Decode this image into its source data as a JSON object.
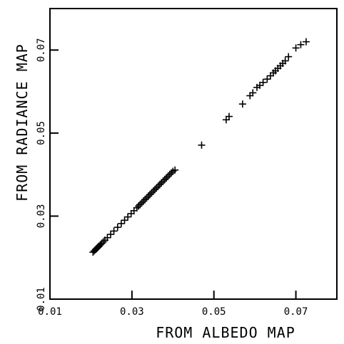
{
  "chart_data": {
    "type": "scatter",
    "xlabel": "FROM ALBEDO MAP",
    "ylabel": "FROM RADIANCE MAP",
    "xlim": [
      0.01,
      0.08
    ],
    "ylim": [
      0.01,
      0.08
    ],
    "xticks": [
      "0.01",
      "0.03",
      "0.05",
      "0.07"
    ],
    "yticks": [
      "0.01",
      "0.03",
      "0.05",
      "0.07"
    ],
    "grid": false,
    "marker": "+",
    "color": "#000000",
    "points": [
      [
        0.0205,
        0.0213
      ],
      [
        0.0208,
        0.0216
      ],
      [
        0.0211,
        0.0219
      ],
      [
        0.0214,
        0.0222
      ],
      [
        0.0217,
        0.0225
      ],
      [
        0.022,
        0.0228
      ],
      [
        0.0223,
        0.0231
      ],
      [
        0.0226,
        0.0234
      ],
      [
        0.023,
        0.0238
      ],
      [
        0.0234,
        0.0242
      ],
      [
        0.024,
        0.0248
      ],
      [
        0.0248,
        0.0256
      ],
      [
        0.0256,
        0.0264
      ],
      [
        0.0265,
        0.0273
      ],
      [
        0.0274,
        0.0282
      ],
      [
        0.0282,
        0.029
      ],
      [
        0.029,
        0.0298
      ],
      [
        0.0298,
        0.0306
      ],
      [
        0.0305,
        0.0313
      ],
      [
        0.0312,
        0.032
      ],
      [
        0.0316,
        0.0324
      ],
      [
        0.032,
        0.0328
      ],
      [
        0.0324,
        0.0332
      ],
      [
        0.0328,
        0.0336
      ],
      [
        0.0332,
        0.034
      ],
      [
        0.0336,
        0.0344
      ],
      [
        0.034,
        0.0348
      ],
      [
        0.0344,
        0.0352
      ],
      [
        0.0348,
        0.0356
      ],
      [
        0.0352,
        0.036
      ],
      [
        0.0356,
        0.0364
      ],
      [
        0.036,
        0.0368
      ],
      [
        0.0364,
        0.0372
      ],
      [
        0.0368,
        0.0376
      ],
      [
        0.0372,
        0.038
      ],
      [
        0.0376,
        0.0384
      ],
      [
        0.038,
        0.0388
      ],
      [
        0.0384,
        0.0392
      ],
      [
        0.0388,
        0.0396
      ],
      [
        0.0392,
        0.04
      ],
      [
        0.0396,
        0.0404
      ],
      [
        0.04,
        0.0408
      ],
      [
        0.0405,
        0.0411
      ],
      [
        0.047,
        0.0471
      ],
      [
        0.053,
        0.0532
      ],
      [
        0.0537,
        0.054
      ],
      [
        0.057,
        0.057
      ],
      [
        0.0588,
        0.059
      ],
      [
        0.0595,
        0.0597
      ],
      [
        0.0605,
        0.061
      ],
      [
        0.0612,
        0.0615
      ],
      [
        0.062,
        0.0622
      ],
      [
        0.063,
        0.063
      ],
      [
        0.0638,
        0.0638
      ],
      [
        0.0645,
        0.0645
      ],
      [
        0.065,
        0.065
      ],
      [
        0.0656,
        0.0656
      ],
      [
        0.0662,
        0.0662
      ],
      [
        0.0668,
        0.0668
      ],
      [
        0.0674,
        0.0674
      ],
      [
        0.0682,
        0.0684
      ],
      [
        0.07,
        0.0705
      ],
      [
        0.0712,
        0.0713
      ],
      [
        0.0725,
        0.072
      ]
    ]
  }
}
